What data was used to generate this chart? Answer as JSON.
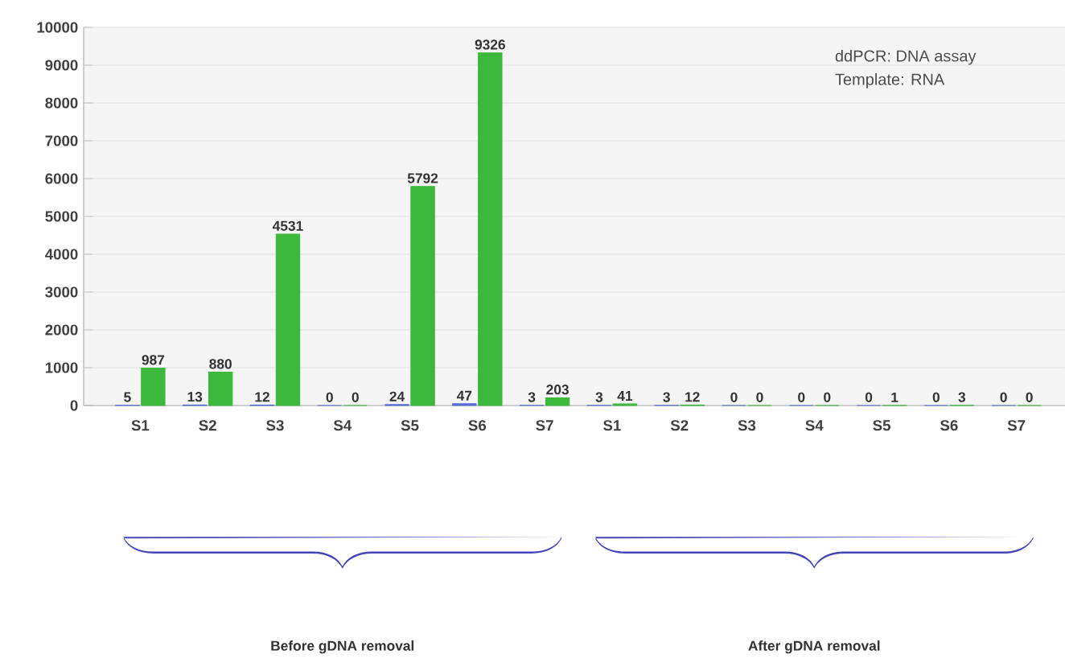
{
  "chart_data": {
    "type": "bar",
    "categories": [
      "S1",
      "S2",
      "S3",
      "S4",
      "S5",
      "S6",
      "S7",
      "S1",
      "S2",
      "S3",
      "S4",
      "S5",
      "S6",
      "S7"
    ],
    "series": [
      {
        "color": "#5a6ed8",
        "values": [
          5,
          13,
          12,
          0,
          24,
          47,
          3,
          3,
          3,
          0,
          0,
          0,
          0,
          0
        ]
      },
      {
        "color": "#3cb83c",
        "values": [
          987,
          880,
          4531,
          0,
          5792,
          9326,
          203,
          41,
          12,
          0,
          0,
          1,
          3,
          0
        ]
      }
    ],
    "ylim": [
      0,
      10000
    ],
    "yticks": [
      0,
      1000,
      2000,
      3000,
      4000,
      5000,
      6000,
      7000,
      8000,
      9000,
      10000
    ],
    "grid": "y",
    "data_labels": true,
    "annotations": [
      "ddPCR:  DNA assay",
      "Template:  RNA",
      "Before gDNA removal",
      "After gDNA removal"
    ]
  }
}
